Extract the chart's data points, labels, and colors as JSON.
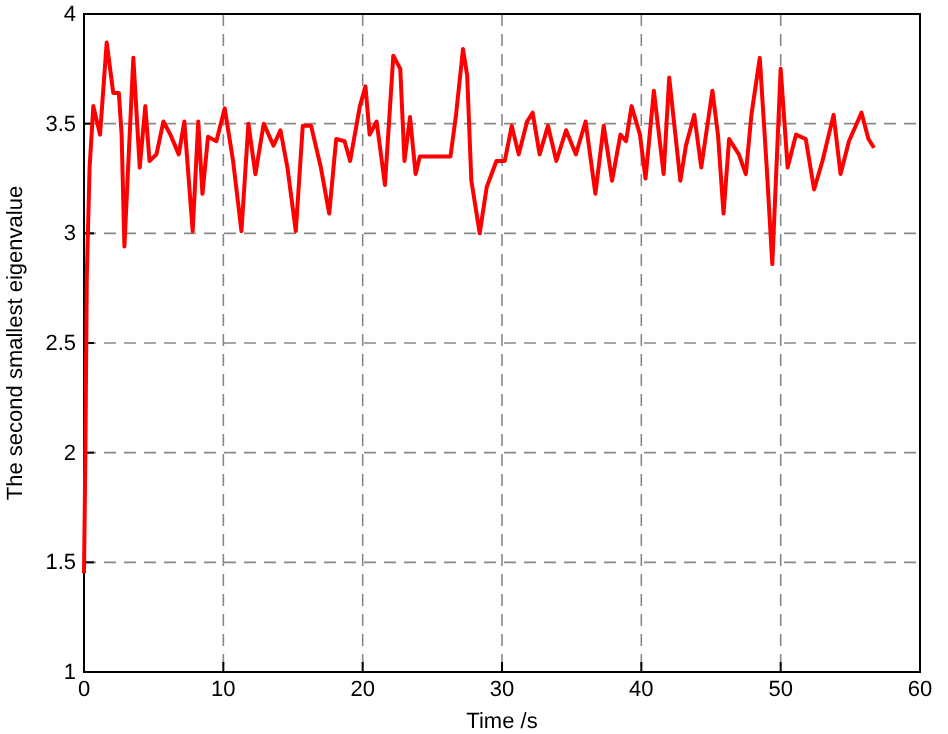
{
  "chart_data": {
    "type": "line",
    "xlabel": "Time /s",
    "ylabel": "The second smallest eigenvalue",
    "xlim": [
      0,
      60
    ],
    "ylim": [
      1,
      4
    ],
    "xticks": [
      0,
      10,
      20,
      30,
      40,
      50,
      60
    ],
    "yticks": [
      1,
      1.5,
      2,
      2.5,
      3,
      3.5,
      4
    ],
    "grid": true,
    "marker": "none",
    "line_style": "solid",
    "series": [
      {
        "color": "#ff0000",
        "x": [
          0,
          0.1,
          0.2,
          0.4,
          0.67,
          1.15,
          1.63,
          2.1,
          2.5,
          2.7,
          2.9,
          3.54,
          4.0,
          4.4,
          4.7,
          5.2,
          5.7,
          6.2,
          6.8,
          7.2,
          7.8,
          8.2,
          8.5,
          8.9,
          9.5,
          10.1,
          10.7,
          11.3,
          11.8,
          12.3,
          12.9,
          13.6,
          14.1,
          14.6,
          15.2,
          15.7,
          16.3,
          17.0,
          17.6,
          18.1,
          18.7,
          19.1,
          19.8,
          20.2,
          20.5,
          21.0,
          21.6,
          22.2,
          22.7,
          23.0,
          23.4,
          23.8,
          24.1,
          26.3,
          26.7,
          27.2,
          27.5,
          27.8,
          28.4,
          28.9,
          29.6,
          30.2,
          30.7,
          31.2,
          31.8,
          32.2,
          32.7,
          33.3,
          33.9,
          34.6,
          35.3,
          36.0,
          36.7,
          37.3,
          37.9,
          38.5,
          38.9,
          39.3,
          39.9,
          40.3,
          40.9,
          41.6,
          42.0,
          42.8,
          43.2,
          43.8,
          44.3,
          45.1,
          45.5,
          45.9,
          46.3,
          47.0,
          47.5,
          47.9,
          48.5,
          49.0,
          49.4,
          50.0,
          50.5,
          51.1,
          51.8,
          52.4,
          53.0,
          53.8,
          54.3,
          54.9,
          55.8,
          56.3,
          56.7
        ],
        "values": [
          1.45,
          2.0,
          2.8,
          3.3,
          3.58,
          3.45,
          3.87,
          3.64,
          3.64,
          3.45,
          2.94,
          3.8,
          3.3,
          3.58,
          3.33,
          3.36,
          3.51,
          3.45,
          3.36,
          3.51,
          3.01,
          3.51,
          3.18,
          3.44,
          3.42,
          3.57,
          3.33,
          3.01,
          3.5,
          3.27,
          3.5,
          3.4,
          3.47,
          3.3,
          3.01,
          3.49,
          3.49,
          3.3,
          3.09,
          3.43,
          3.42,
          3.33,
          3.58,
          3.67,
          3.45,
          3.51,
          3.22,
          3.81,
          3.75,
          3.33,
          3.53,
          3.27,
          3.35,
          3.35,
          3.54,
          3.84,
          3.72,
          3.24,
          3.0,
          3.21,
          3.33,
          3.33,
          3.49,
          3.36,
          3.51,
          3.55,
          3.36,
          3.49,
          3.33,
          3.47,
          3.36,
          3.51,
          3.18,
          3.49,
          3.24,
          3.45,
          3.42,
          3.58,
          3.45,
          3.25,
          3.65,
          3.27,
          3.71,
          3.24,
          3.4,
          3.54,
          3.3,
          3.65,
          3.45,
          3.09,
          3.43,
          3.36,
          3.27,
          3.54,
          3.8,
          3.3,
          2.86,
          3.75,
          3.3,
          3.45,
          3.43,
          3.2,
          3.33,
          3.54,
          3.27,
          3.42,
          3.55,
          3.43,
          3.39
        ]
      }
    ]
  }
}
